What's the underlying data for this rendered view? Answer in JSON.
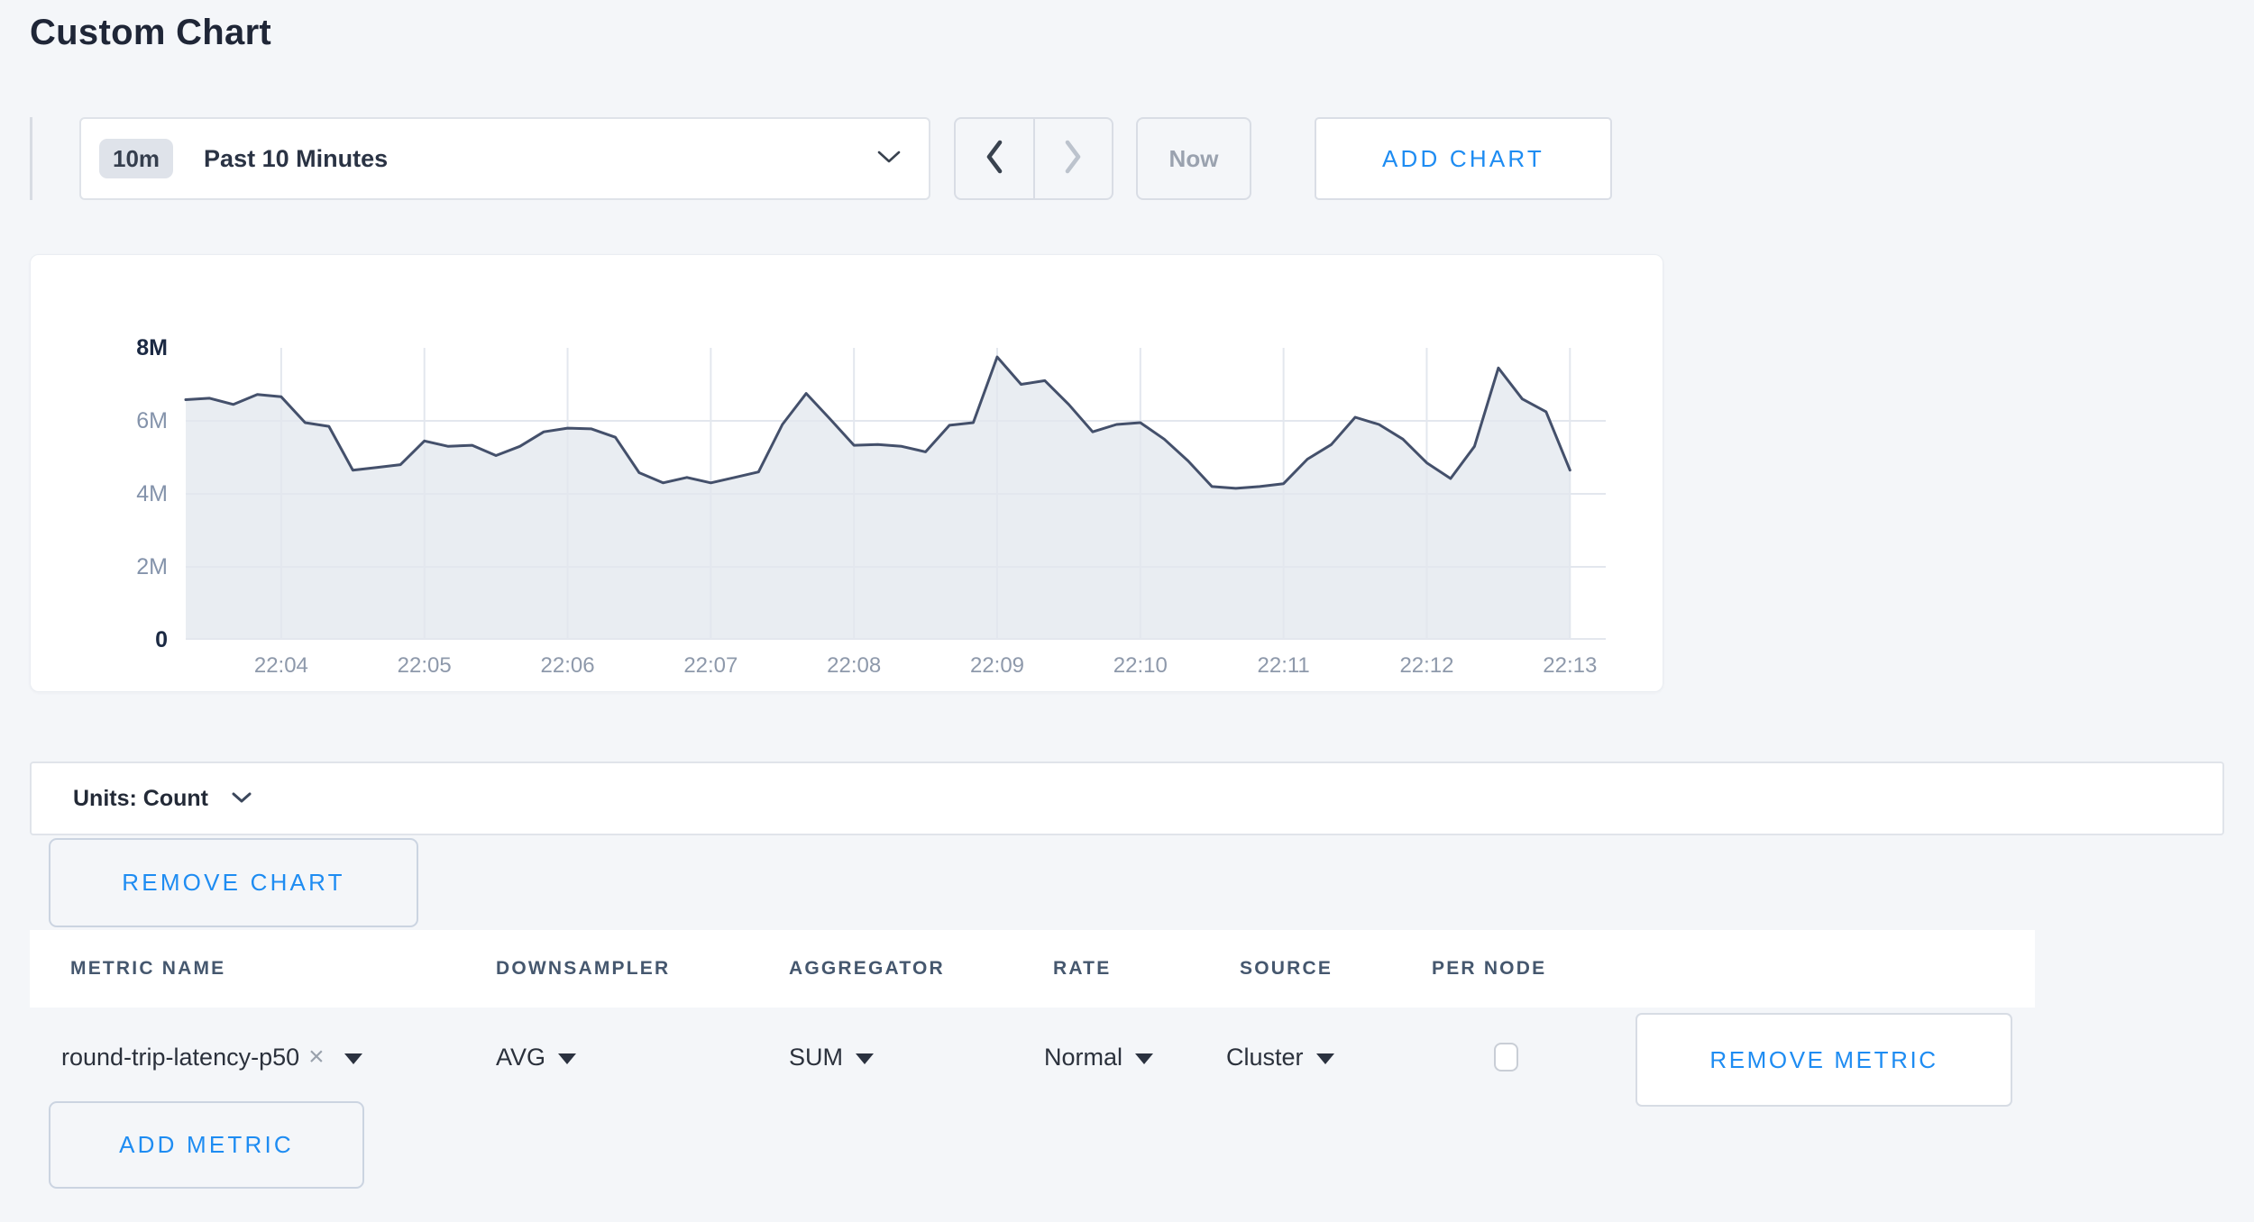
{
  "page": {
    "title": "Custom Chart"
  },
  "toolbar": {
    "time_scale_badge": "10m",
    "time_range_label": "Past 10 Minutes",
    "now_label": "Now",
    "add_chart_label": "ADD CHART"
  },
  "icons": {
    "chevron_down": "chevron-down",
    "chevron_left": "chevron-left",
    "chevron_right": "chevron-right",
    "select_caret": "triangle-down",
    "close_x": "×"
  },
  "chart_data": {
    "type": "area",
    "title": "",
    "xlabel": "",
    "ylabel": "",
    "unit": "Count",
    "start_time": "22:03:20",
    "interval_seconds": 10,
    "values": [
      6580000,
      6620000,
      6450000,
      6720000,
      6660000,
      5950000,
      5850000,
      4650000,
      4720000,
      4800000,
      5450000,
      5300000,
      5330000,
      5050000,
      5300000,
      5700000,
      5800000,
      5780000,
      5550000,
      4580000,
      4300000,
      4450000,
      4300000,
      4450000,
      4600000,
      5900000,
      6750000,
      6050000,
      5330000,
      5350000,
      5300000,
      5150000,
      5880000,
      5950000,
      7750000,
      7000000,
      7100000,
      6450000,
      5700000,
      5900000,
      5950000,
      5500000,
      4900000,
      4200000,
      4150000,
      4200000,
      4280000,
      4950000,
      5350000,
      6100000,
      5900000,
      5500000,
      4850000,
      4420000,
      5300000,
      7450000,
      6600000,
      6250000,
      4650000
    ],
    "x_tick_minutes": [
      4,
      5,
      6,
      7,
      8,
      9,
      10,
      11,
      12,
      13
    ],
    "x_tick_labels": [
      "22:04",
      "22:05",
      "22:06",
      "22:07",
      "22:08",
      "22:09",
      "22:10",
      "22:11",
      "22:12",
      "22:13"
    ],
    "x_domain_minutes_after_22h": [
      3.3333,
      13.25
    ],
    "y_tick_values": [
      0,
      2000000,
      4000000,
      6000000,
      8000000
    ],
    "y_tick_labels": [
      "0",
      "2M",
      "4M",
      "6M",
      "8M"
    ],
    "ylim": [
      0,
      8000000
    ],
    "grid": true,
    "legend": false,
    "colors": {
      "line": "#44506b",
      "fill": "#e9edf2",
      "grid": "#e3e7ee"
    }
  },
  "units_selector": {
    "label": "Units: Count"
  },
  "actions": {
    "remove_chart_label": "REMOVE CHART",
    "add_metric_label": "ADD METRIC",
    "remove_metric_label": "REMOVE METRIC"
  },
  "metrics_table": {
    "columns": [
      "METRIC NAME",
      "DOWNSAMPLER",
      "AGGREGATOR",
      "RATE",
      "SOURCE",
      "PER NODE"
    ],
    "rows": [
      {
        "metric_name": "round-trip-latency-p50",
        "downsampler": "AVG",
        "aggregator": "SUM",
        "rate": "Normal",
        "source": "Cluster",
        "per_node_checked": false
      }
    ]
  },
  "colors": {
    "accent_blue": "#1e8cf2",
    "page_bg": "#f4f6f9",
    "dark_text": "#242b38",
    "header_text": "#45576e",
    "muted_text": "#9aa2af",
    "axis_muted": "#8493ab",
    "axis_strong": "#1b2943"
  }
}
